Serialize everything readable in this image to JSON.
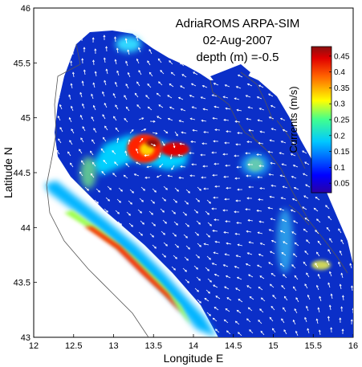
{
  "plot": {
    "title_lines": [
      "AdriaROMS ARPA-SIM",
      "02-Aug-2007",
      "depth (m) =-0.5"
    ],
    "xlabel": "Longitude E",
    "ylabel": "Latitude N",
    "x_ticks": [
      "12",
      "12.5",
      "13",
      "13.5",
      "14",
      "14.5",
      "15",
      "15.5",
      "16"
    ],
    "y_ticks": [
      "43",
      "43.5",
      "44",
      "44.5",
      "45",
      "45.5",
      "46"
    ],
    "x_range": [
      12,
      16
    ],
    "y_range": [
      43,
      46
    ]
  },
  "colorbar": {
    "label": "Currents (m/s)",
    "range": [
      0.02,
      0.48
    ],
    "ticks": [
      "0.05",
      "0.1",
      "0.15",
      "0.2",
      "0.25",
      "0.3",
      "0.35",
      "0.4",
      "0.45"
    ]
  },
  "colors": {
    "background_water": "#0b2fc8",
    "low": "#2a00a6",
    "high": "#8a1010",
    "vectors": "#ffffff",
    "coast": "#555555"
  }
}
